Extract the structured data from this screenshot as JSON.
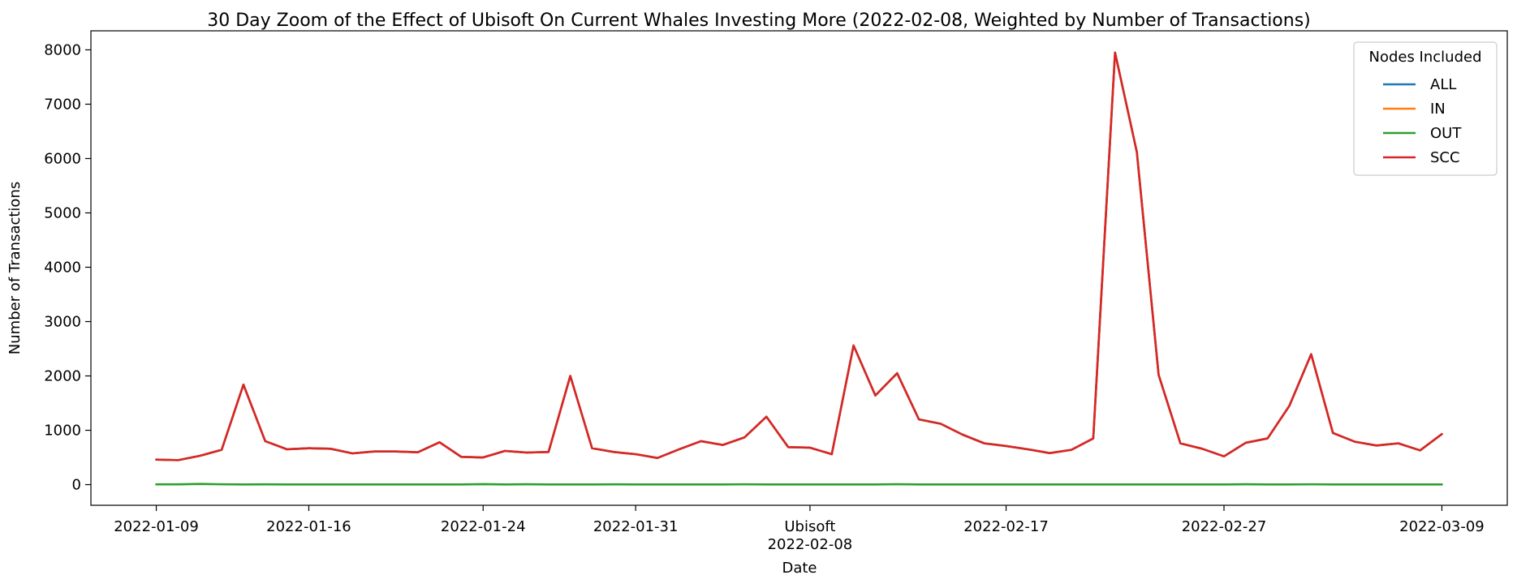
{
  "chart_data": {
    "type": "line",
    "title": "30 Day Zoom of the Effect of Ubisoft On Current Whales Investing More (2022-02-08, Weighted by Number of Transactions)",
    "xlabel": "Date",
    "ylabel": "Number of Transactions",
    "ylim": [
      -380,
      8350
    ],
    "yticks": [
      0,
      1000,
      2000,
      3000,
      4000,
      5000,
      6000,
      7000,
      8000
    ],
    "xlim": [
      "2022-01-06",
      "2022-03-12"
    ],
    "xtick_labels": [
      {
        "date": "2022-01-09",
        "label": "2022-01-09"
      },
      {
        "date": "2022-01-16",
        "label": "2022-01-16"
      },
      {
        "date": "2022-01-24",
        "label": "2022-01-24"
      },
      {
        "date": "2022-01-31",
        "label": "2022-01-31"
      },
      {
        "date": "2022-02-08",
        "label": "Ubisoft",
        "label2": "2022-02-08"
      },
      {
        "date": "2022-02-17",
        "label": "2022-02-17"
      },
      {
        "date": "2022-02-27",
        "label": "2022-02-27"
      },
      {
        "date": "2022-03-09",
        "label": "2022-03-09"
      }
    ],
    "grid": false,
    "legend": {
      "title": "Nodes Included",
      "placement": "top-right"
    },
    "x": [
      "2022-01-09",
      "2022-01-10",
      "2022-01-11",
      "2022-01-12",
      "2022-01-13",
      "2022-01-14",
      "2022-01-15",
      "2022-01-16",
      "2022-01-17",
      "2022-01-18",
      "2022-01-19",
      "2022-01-20",
      "2022-01-21",
      "2022-01-22",
      "2022-01-23",
      "2022-01-24",
      "2022-01-25",
      "2022-01-26",
      "2022-01-27",
      "2022-01-28",
      "2022-01-29",
      "2022-01-30",
      "2022-01-31",
      "2022-02-01",
      "2022-02-02",
      "2022-02-03",
      "2022-02-04",
      "2022-02-05",
      "2022-02-06",
      "2022-02-07",
      "2022-02-08",
      "2022-02-09",
      "2022-02-10",
      "2022-02-11",
      "2022-02-12",
      "2022-02-13",
      "2022-02-14",
      "2022-02-15",
      "2022-02-16",
      "2022-02-17",
      "2022-02-18",
      "2022-02-19",
      "2022-02-20",
      "2022-02-21",
      "2022-02-22",
      "2022-02-23",
      "2022-02-24",
      "2022-02-25",
      "2022-02-26",
      "2022-02-27",
      "2022-02-28",
      "2022-03-01",
      "2022-03-02",
      "2022-03-03",
      "2022-03-04",
      "2022-03-05",
      "2022-03-06",
      "2022-03-07",
      "2022-03-08",
      "2022-03-09"
    ],
    "series": [
      {
        "name": "ALL",
        "color": "#1f77b4",
        "values": [
          460,
          450,
          530,
          640,
          1840,
          800,
          650,
          670,
          660,
          575,
          610,
          610,
          595,
          780,
          510,
          500,
          620,
          590,
          600,
          2000,
          670,
          600,
          560,
          490,
          650,
          800,
          730,
          870,
          1250,
          690,
          680,
          560,
          2560,
          1640,
          2050,
          1200,
          1120,
          920,
          760,
          710,
          650,
          580,
          640,
          850,
          7950,
          6120,
          2020,
          760,
          660,
          520,
          770,
          850,
          1450,
          2400,
          950,
          790,
          720,
          760,
          630,
          930
        ]
      },
      {
        "name": "IN",
        "color": "#ff7f0e",
        "values": [
          460,
          450,
          530,
          640,
          1840,
          800,
          650,
          670,
          660,
          575,
          610,
          610,
          595,
          780,
          510,
          500,
          620,
          590,
          600,
          2000,
          670,
          600,
          560,
          490,
          650,
          800,
          730,
          870,
          1250,
          690,
          680,
          560,
          2560,
          1640,
          2050,
          1200,
          1120,
          920,
          760,
          710,
          650,
          580,
          640,
          850,
          7950,
          6120,
          2020,
          760,
          660,
          520,
          770,
          850,
          1450,
          2400,
          950,
          790,
          720,
          760,
          630,
          930
        ]
      },
      {
        "name": "OUT",
        "color": "#2ca02c",
        "values": [
          5,
          5,
          12,
          6,
          4,
          5,
          4,
          4,
          3,
          3,
          3,
          4,
          4,
          3,
          3,
          9,
          3,
          7,
          3,
          4,
          3,
          5,
          3,
          3,
          3,
          3,
          4,
          6,
          3,
          3,
          3,
          3,
          3,
          3,
          8,
          4,
          4,
          3,
          3,
          4,
          3,
          3,
          4,
          3,
          4,
          3,
          3,
          3,
          3,
          4,
          7,
          4,
          3,
          6,
          3,
          3,
          3,
          4,
          4,
          3
        ]
      },
      {
        "name": "SCC",
        "color": "#d62728",
        "values": [
          460,
          450,
          530,
          640,
          1840,
          800,
          650,
          670,
          660,
          575,
          610,
          610,
          595,
          780,
          510,
          500,
          620,
          590,
          600,
          2000,
          670,
          600,
          560,
          490,
          650,
          800,
          730,
          870,
          1250,
          690,
          680,
          560,
          2560,
          1640,
          2050,
          1200,
          1120,
          920,
          760,
          710,
          650,
          580,
          640,
          850,
          7950,
          6120,
          2020,
          760,
          660,
          520,
          770,
          850,
          1450,
          2400,
          950,
          790,
          720,
          760,
          630,
          930
        ]
      }
    ]
  }
}
